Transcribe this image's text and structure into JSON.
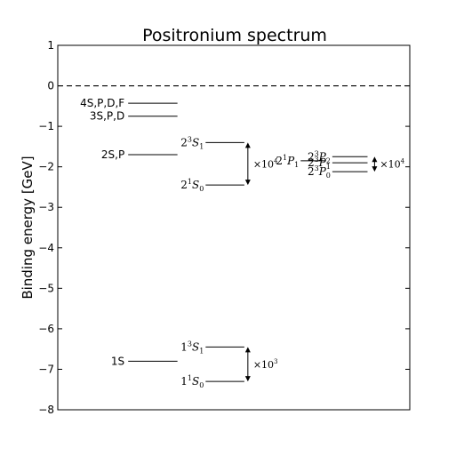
{
  "chart_data": {
    "type": "energy-level diagram",
    "title": "Positronium spectrum",
    "ylabel": "Binding energy [GeV]",
    "ylim": [
      -8,
      1
    ],
    "yticks": [
      1,
      0,
      -1,
      -2,
      -3,
      -4,
      -5,
      -6,
      -7,
      -8
    ],
    "ytick_labels": [
      "1",
      "0",
      "−1",
      "−2",
      "−3",
      "−4",
      "−5",
      "−6",
      "−7",
      "−8"
    ],
    "xlim": [
      0,
      1
    ],
    "reference_line": {
      "y": 0,
      "style": "dashed"
    },
    "levels": [
      {
        "label": "4S,P,D,F",
        "y": -0.43,
        "x_start": 0.2,
        "x_end": 0.34
      },
      {
        "label": "3S,P,D",
        "y": -0.75,
        "x_start": 0.2,
        "x_end": 0.34
      },
      {
        "label": "2S,P",
        "y": -1.7,
        "x_start": 0.2,
        "x_end": 0.34
      },
      {
        "label": "1S",
        "y": -6.8,
        "x_start": 0.2,
        "x_end": 0.34
      }
    ],
    "sublevels": [
      {
        "term": "S",
        "n": "2",
        "mult": "3",
        "j": "1",
        "y": -1.4,
        "x_start": 0.42,
        "x_end": 0.53
      },
      {
        "term": "S",
        "n": "2",
        "mult": "1",
        "j": "0",
        "y": -2.45,
        "x_start": 0.42,
        "x_end": 0.53
      },
      {
        "term": "P",
        "n": "2",
        "mult": "1",
        "j": "1",
        "y": -1.85,
        "x_start": 0.69,
        "x_end": 0.76
      },
      {
        "term": "P",
        "n": "2",
        "mult": "3",
        "j": "2",
        "y": -1.75,
        "x_start": 0.78,
        "x_end": 0.88
      },
      {
        "term": "P",
        "n": "2",
        "mult": "3",
        "j": "1",
        "y": -1.9,
        "x_start": 0.78,
        "x_end": 0.88
      },
      {
        "term": "P",
        "n": "2",
        "mult": "3",
        "j": "0",
        "y": -2.12,
        "x_start": 0.78,
        "x_end": 0.88
      },
      {
        "term": "S",
        "n": "1",
        "mult": "3",
        "j": "1",
        "y": -6.45,
        "x_start": 0.42,
        "x_end": 0.53
      },
      {
        "term": "S",
        "n": "1",
        "mult": "1",
        "j": "0",
        "y": -7.3,
        "x_start": 0.42,
        "x_end": 0.53
      }
    ],
    "scale_arrows": [
      {
        "label_base": "×10",
        "label_exp": "4",
        "y_top": -1.4,
        "y_bottom": -2.45,
        "x": 0.54
      },
      {
        "label_base": "×10",
        "label_exp": "4",
        "y_top": -1.75,
        "y_bottom": -2.12,
        "x": 0.9
      },
      {
        "label_base": "×10",
        "label_exp": "3",
        "y_top": -6.45,
        "y_bottom": -7.3,
        "x": 0.54
      }
    ]
  }
}
